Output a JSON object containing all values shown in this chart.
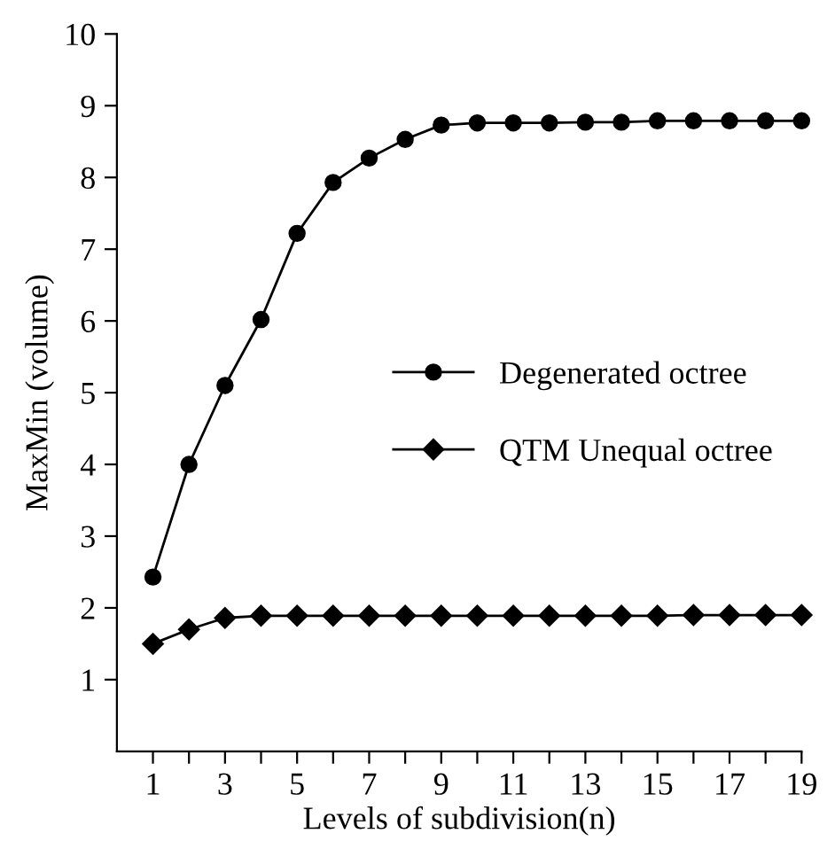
{
  "chart_data": {
    "type": "line",
    "xlabel": "Levels of subdivision(n)",
    "ylabel": "MaxMin (volume)",
    "x": [
      1,
      2,
      3,
      4,
      5,
      6,
      7,
      8,
      9,
      10,
      11,
      12,
      13,
      14,
      15,
      16,
      17,
      18,
      19
    ],
    "series": [
      {
        "name": "Degenerated octree",
        "color": "#000000",
        "marker": "circle",
        "values": [
          2.43,
          4.0,
          5.1,
          6.02,
          7.22,
          7.93,
          8.27,
          8.53,
          8.73,
          8.76,
          8.76,
          8.76,
          8.77,
          8.77,
          8.79,
          8.79,
          8.79,
          8.79,
          8.79
        ]
      },
      {
        "name": "QTM Unequal octree",
        "color": "#000000",
        "marker": "diamond",
        "values": [
          1.5,
          1.7,
          1.86,
          1.89,
          1.89,
          1.89,
          1.89,
          1.89,
          1.89,
          1.89,
          1.89,
          1.89,
          1.89,
          1.89,
          1.89,
          1.9,
          1.9,
          1.9,
          1.9
        ]
      }
    ],
    "xlim": [
      0,
      19
    ],
    "ylim": [
      0,
      10
    ],
    "xticks": [
      1,
      {
        "value": 2,
        "label": null
      },
      3,
      {
        "value": 4,
        "label": null
      },
      5,
      {
        "value": 6,
        "label": null
      },
      7,
      {
        "value": 8,
        "label": null
      },
      9,
      {
        "value": 10,
        "label": null
      },
      11,
      {
        "value": 12,
        "label": null
      },
      13,
      {
        "value": 14,
        "label": null
      },
      15,
      {
        "value": 16,
        "label": null
      },
      17,
      {
        "value": 18,
        "label": null
      },
      19
    ],
    "yticks": [
      1,
      2,
      3,
      4,
      5,
      6,
      7,
      8,
      9,
      10
    ],
    "grid": false,
    "legend": "right",
    "line_style": "solid"
  }
}
